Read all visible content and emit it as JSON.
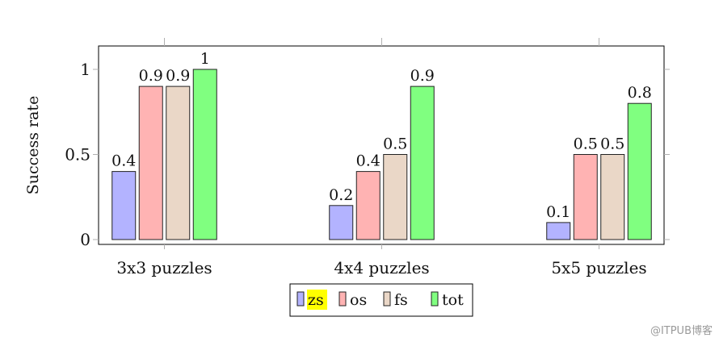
{
  "chart_data": {
    "type": "bar",
    "ylabel": "Success rate",
    "ylim": [
      0,
      1.1
    ],
    "yticks": [
      {
        "value": 0,
        "label": "0"
      },
      {
        "value": 0.5,
        "label": "0.5"
      },
      {
        "value": 1,
        "label": "1"
      }
    ],
    "categories": [
      "3x3 puzzles",
      "4x4 puzzles",
      "5x5 puzzles"
    ],
    "series": [
      {
        "name": "zs",
        "color": "#b3b3ff",
        "values": [
          0.4,
          0.2,
          0.1
        ],
        "labels": [
          "0.4",
          "0.2",
          "0.1"
        ]
      },
      {
        "name": "os",
        "color": "#ffb3b3",
        "values": [
          0.9,
          0.4,
          0.5
        ],
        "labels": [
          "0.9",
          "0.4",
          "0.5"
        ]
      },
      {
        "name": "fs",
        "color": "#ead7c7",
        "values": [
          0.9,
          0.5,
          0.5
        ],
        "labels": [
          "0.9",
          "0.5",
          "0.5"
        ]
      },
      {
        "name": "tot",
        "color": "#80ff80",
        "values": [
          1,
          0.9,
          0.8
        ],
        "labels": [
          "1",
          "0.9",
          "0.8"
        ]
      }
    ],
    "legend": {
      "placement": "bottom-center",
      "highlight_series": "zs",
      "highlight_color": "#ffff00"
    },
    "grid": false
  },
  "watermark": "@ITPUB博客"
}
